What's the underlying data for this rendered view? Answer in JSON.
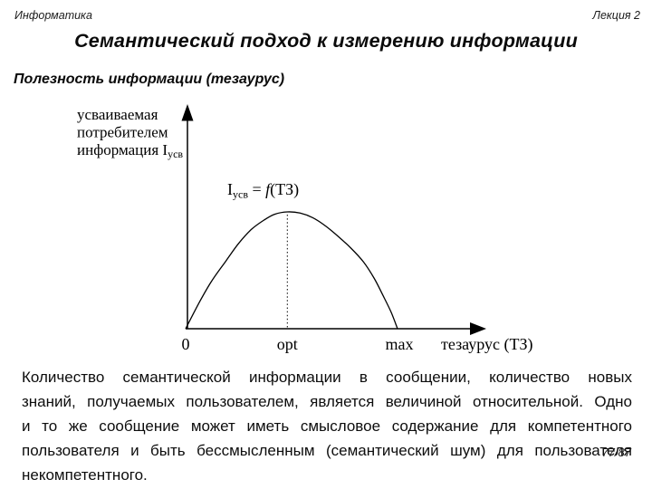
{
  "page": {
    "background": "#ffffff",
    "text_color": "#111111"
  },
  "header": {
    "course": "Информатика",
    "lecture": "Лекция 2"
  },
  "title": "Семантический подход к измерению информации",
  "subtitle": "Полезность информации (тезаурус)",
  "chart_data": {
    "type": "line",
    "title": "",
    "xlabel": "тезаурус (ТЗ)",
    "ylabel": "усваиваемая потребителем информация Iусв",
    "ylabel_lines": [
      "усваиваемая",
      "потребителем",
      "информация I"
    ],
    "ylabel_sub": "усв",
    "series_label": "Iусв = f(ТЗ)",
    "formula_parts": {
      "base": "I",
      "sub": "усв",
      "eq": " = ",
      "f": "f",
      "args": "(ТЗ)"
    },
    "x_tick_labels": [
      "0",
      "opt",
      "max"
    ],
    "x_tick_positions": [
      0,
      0.48,
      1
    ],
    "ylim": [
      0,
      1
    ],
    "grid": false,
    "points": [
      [
        0,
        0
      ],
      [
        0.06,
        0.21
      ],
      [
        0.12,
        0.4
      ],
      [
        0.19,
        0.58
      ],
      [
        0.25,
        0.73
      ],
      [
        0.31,
        0.85
      ],
      [
        0.37,
        0.93
      ],
      [
        0.42,
        0.98
      ],
      [
        0.48,
        1.0
      ],
      [
        0.54,
        0.99
      ],
      [
        0.6,
        0.95
      ],
      [
        0.66,
        0.88
      ],
      [
        0.72,
        0.79
      ],
      [
        0.78,
        0.69
      ],
      [
        0.84,
        0.57
      ],
      [
        0.89,
        0.43
      ],
      [
        0.93,
        0.29
      ],
      [
        0.97,
        0.14
      ],
      [
        1,
        0
      ]
    ]
  },
  "body": {
    "lines": [
      "Количество семантической информации в сообщении, количество новых",
      "знаний, получаемых пользователем, является величиной относительной. Одно",
      "и то же сообщение может иметь смысловое содержание для компетентного",
      "пользователя и быть бессмысленным (семантический шум) для пользователя",
      "некомпетентного."
    ]
  },
  "footer": {
    "page": "77/87"
  }
}
